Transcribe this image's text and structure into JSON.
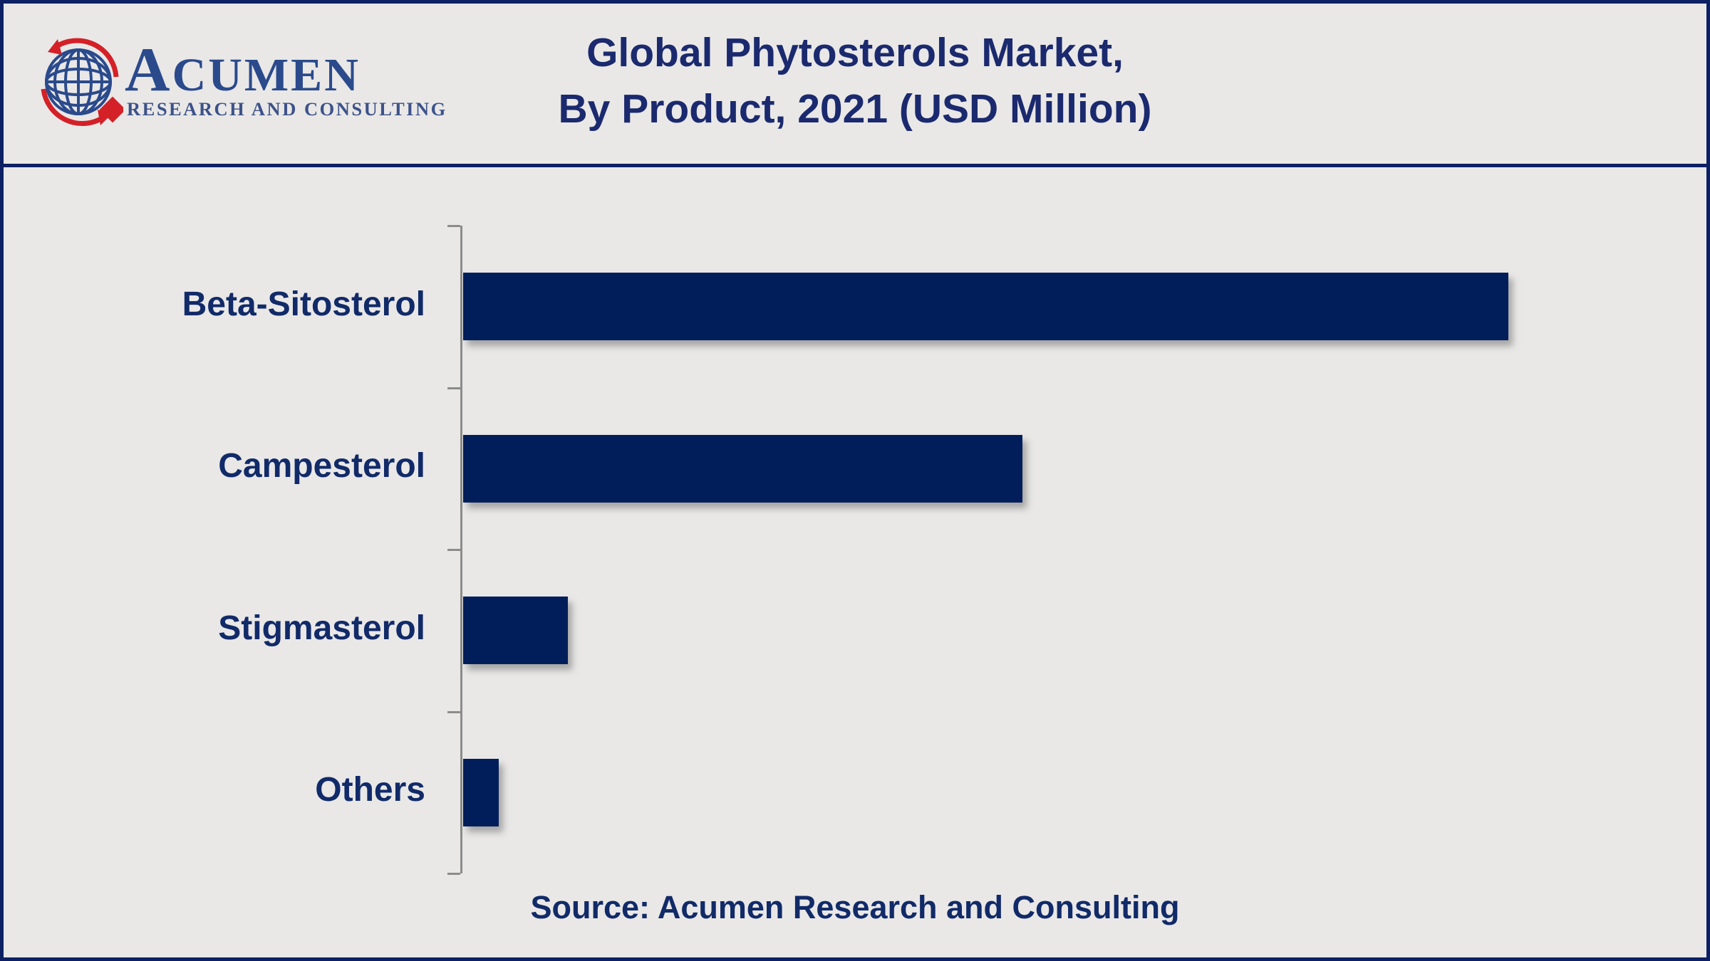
{
  "logo": {
    "brand_initial": "A",
    "brand_rest": "CUMEN",
    "tagline": "RESEARCH AND CONSULTING",
    "globe_color": "#2b4a8c",
    "accent_red": "#d42027"
  },
  "header": {
    "title_line1": "Global Phytosterols Market,",
    "title_line2": "By Product, 2021 (USD Million)"
  },
  "chart_data": {
    "type": "bar",
    "orientation": "horizontal",
    "title": "Global Phytosterols Market, By Product, 2021 (USD Million)",
    "unit": "USD Million",
    "categories": [
      "Beta-Sitosterol",
      "Campesterol",
      "Stigmasterol",
      "Others"
    ],
    "values_relative_to_max_pct": [
      100,
      53.5,
      10,
      3.4
    ],
    "value_axis_labels_visible": false,
    "data_labels_visible": false,
    "grid": false,
    "bar_color": "#021e5a",
    "axis_color": "#8c8c8c",
    "label_color": "#112a68"
  },
  "footer": {
    "source_note": "Source: Acumen Research and Consulting"
  }
}
